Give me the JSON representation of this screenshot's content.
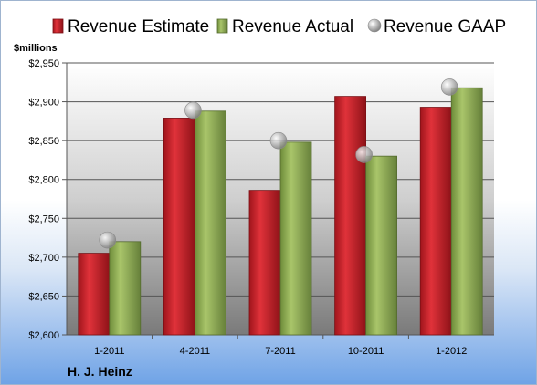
{
  "company": "H. J. Heinz",
  "chart_data": {
    "type": "bar",
    "categories": [
      "1-2011",
      "4-2011",
      "7-2011",
      "10-2011",
      "1-2012"
    ],
    "series": [
      {
        "name": "Revenue Estimate",
        "kind": "bar",
        "color": "#c8242b",
        "values": [
          2705,
          2879,
          2786,
          2907,
          2893
        ]
      },
      {
        "name": "Revenue Actual",
        "kind": "bar",
        "color": "#8fad54",
        "values": [
          2720,
          2888,
          2848,
          2830,
          2918
        ]
      },
      {
        "name": "Revenue GAAP",
        "kind": "marker",
        "color": "#b0b0b0",
        "values": [
          2722,
          2889,
          2850,
          2832,
          2919
        ]
      }
    ],
    "ylabel": "$millions",
    "ylim": [
      2600,
      2950
    ],
    "yticks": [
      2600,
      2650,
      2700,
      2750,
      2800,
      2850,
      2900,
      2950
    ],
    "ytick_labels": [
      "$2,600",
      "$2,650",
      "$2,700",
      "$2,750",
      "$2,800",
      "$2,850",
      "$2,900",
      "$2,950"
    ],
    "grid": true,
    "legend": "top"
  }
}
